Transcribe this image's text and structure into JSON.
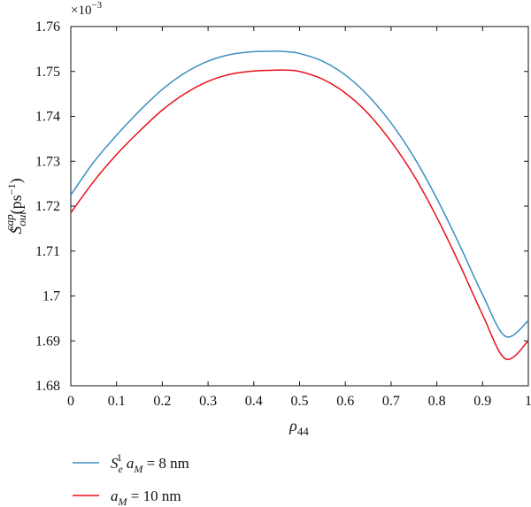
{
  "chart_data": {
    "type": "line",
    "xlabel": "ρ",
    "xlabel_sub": "44",
    "ylabel": "S",
    "ylabel_sub": "out",
    "ylabel_sup": "cap",
    "ylabel_unit": "(ps",
    "ylabel_unit_sup": "−1",
    "ylabel_unit_close": ")",
    "y_multiplier_base": "×10",
    "y_multiplier_exp": "−3",
    "xlim": [
      0,
      1
    ],
    "ylim": [
      1.68,
      1.76
    ],
    "x_ticks": [
      0,
      0.1,
      0.2,
      0.3,
      0.4,
      0.5,
      0.6,
      0.7,
      0.8,
      0.9,
      1
    ],
    "x_tick_labels": [
      "0",
      "0.1",
      "0.2",
      "0.3",
      "0.4",
      "0.5",
      "0.6",
      "0.7",
      "0.8",
      "0.9",
      "1"
    ],
    "y_ticks": [
      1.68,
      1.69,
      1.7,
      1.71,
      1.72,
      1.73,
      1.74,
      1.75,
      1.76
    ],
    "y_tick_labels": [
      "1.68",
      "1.69",
      "1.7",
      "1.71",
      "1.72",
      "1.73",
      "1.74",
      "1.75",
      "1.76"
    ],
    "grid": false,
    "legend_position": "bottom",
    "series": [
      {
        "name_main": "S",
        "name_sub": "e",
        "name_sup": "1",
        "name_rest_var": "a",
        "name_rest_sub": "M",
        "name_rest_val": " = 8 nm",
        "color": "#3a8fc0",
        "x": [
          0,
          0.05,
          0.1,
          0.15,
          0.2,
          0.25,
          0.3,
          0.35,
          0.4,
          0.45,
          0.47,
          0.5,
          0.55,
          0.6,
          0.65,
          0.7,
          0.75,
          0.8,
          0.85,
          0.9,
          0.95,
          1
        ],
        "y": [
          1.7225,
          1.7298,
          1.7358,
          1.7412,
          1.746,
          1.7497,
          1.7523,
          1.7538,
          1.7544,
          1.7545,
          1.7544,
          1.754,
          1.7523,
          1.7492,
          1.7446,
          1.7385,
          1.7309,
          1.7217,
          1.7113,
          1.7003,
          1.691,
          1.6945
        ]
      },
      {
        "name_var": "a",
        "name_sub": "M",
        "name_val": " = 10 nm",
        "color": "#e8101a",
        "x": [
          0,
          0.05,
          0.1,
          0.15,
          0.2,
          0.25,
          0.3,
          0.35,
          0.4,
          0.45,
          0.47,
          0.5,
          0.55,
          0.6,
          0.65,
          0.7,
          0.75,
          0.8,
          0.85,
          0.9,
          0.95,
          1
        ],
        "y": [
          1.7185,
          1.7255,
          1.7315,
          1.7367,
          1.7414,
          1.7451,
          1.7478,
          1.7494,
          1.7501,
          1.7503,
          1.7503,
          1.75,
          1.7483,
          1.7452,
          1.7406,
          1.7344,
          1.7268,
          1.7175,
          1.707,
          1.6958,
          1.686,
          1.69
        ]
      }
    ]
  }
}
